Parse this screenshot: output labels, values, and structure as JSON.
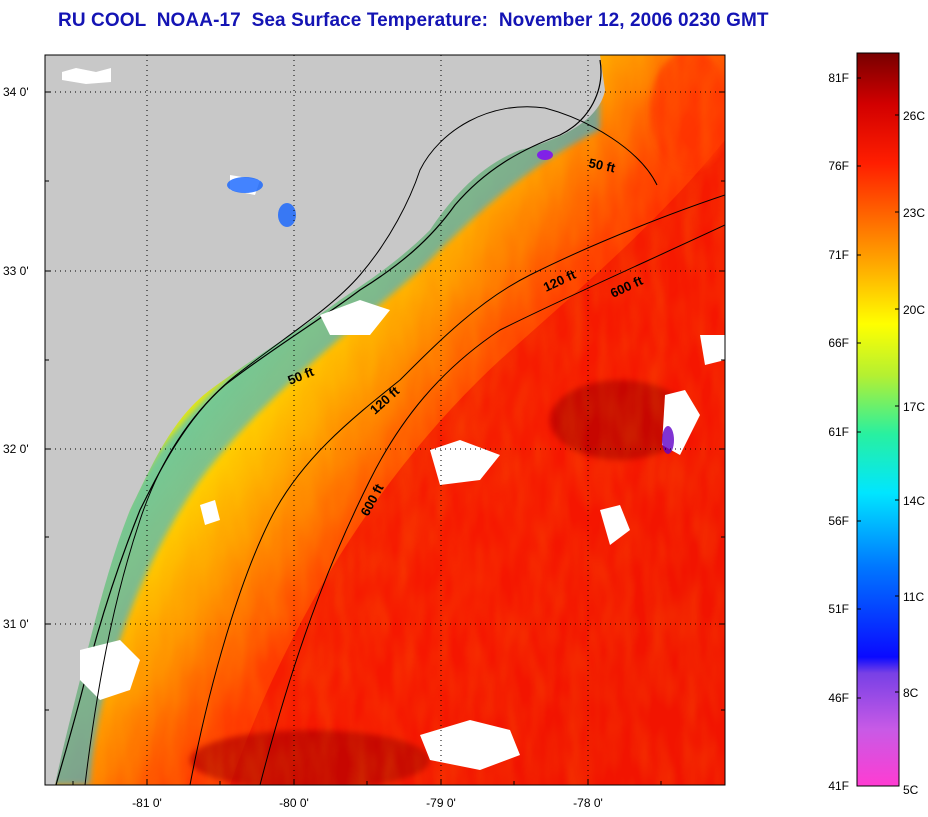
{
  "title": "RU COOL  NOAA-17  Sea Surface Temperature:  November 12, 2006 0230 GMT",
  "map": {
    "lat_ticks": [
      {
        "value": 34.0,
        "label": "34 0'"
      },
      {
        "value": 33.0,
        "label": "33 0'"
      },
      {
        "value": 32.0,
        "label": "32 0'"
      },
      {
        "value": 31.0,
        "label": "31 0'"
      }
    ],
    "lon_ticks": [
      {
        "value": -81.0,
        "label": "-81 0'"
      },
      {
        "value": -80.0,
        "label": "-80 0'"
      },
      {
        "value": -79.0,
        "label": "-79 0'"
      },
      {
        "value": -78.0,
        "label": "-78 0'"
      }
    ],
    "contour_labels": {
      "c50_north": "50 ft",
      "c50_south": "50 ft",
      "c120_north": "120 ft",
      "c120_south": "120 ft",
      "c600_north": "600 ft",
      "c600_south": "600 ft"
    },
    "land_color": "#c8c8c8",
    "cloud_color": "#ffffff"
  },
  "colorbar": {
    "fahrenheit_labels": [
      "81F",
      "76F",
      "71F",
      "66F",
      "61F",
      "56F",
      "51F",
      "46F",
      "41F"
    ],
    "celsius_labels": [
      "26C",
      "23C",
      "20C",
      "17C",
      "14C",
      "11C",
      "8C",
      "5C"
    ],
    "colors": [
      "#ff3cd2",
      "#c85ae6",
      "#7840e6",
      "#0a0aff",
      "#0078ff",
      "#00e6ff",
      "#28f0a0",
      "#b4f032",
      "#ffff00",
      "#ffb400",
      "#ff6400",
      "#ff1e00",
      "#d20000",
      "#780000"
    ]
  }
}
